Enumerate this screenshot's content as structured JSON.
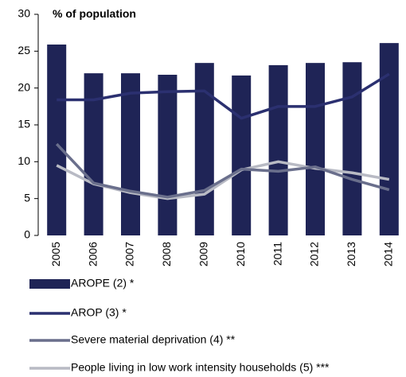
{
  "chart_data": {
    "type": "bar",
    "y_label": "% of population",
    "categories": [
      "2005",
      "2006",
      "2007",
      "2008",
      "2009",
      "2010",
      "2011",
      "2012",
      "2013",
      "2014"
    ],
    "ylim": [
      0,
      30
    ],
    "yticks": [
      0,
      5,
      10,
      15,
      20,
      25,
      30
    ],
    "series": [
      {
        "name": "AROPE (2) *",
        "type": "bar",
        "color": "#1f2456",
        "values": [
          25.9,
          22.0,
          22.0,
          21.8,
          23.4,
          21.7,
          23.1,
          23.4,
          23.5,
          26.1
        ]
      },
      {
        "name": "AROP (3) *",
        "type": "line",
        "color": "#2b3070",
        "values": [
          18.4,
          18.4,
          19.3,
          19.5,
          19.6,
          15.9,
          17.5,
          17.5,
          18.8,
          21.9
        ]
      },
      {
        "name": "Severe material deprivation (4) **",
        "type": "line",
        "color": "#6a6f8c",
        "values": [
          12.4,
          7.1,
          6.0,
          5.2,
          6.1,
          9.0,
          8.7,
          9.3,
          7.6,
          6.2
        ]
      },
      {
        "name": "People living in low work intensity households (5) ***",
        "type": "line",
        "color": "#b8bac4",
        "values": [
          9.5,
          7.0,
          5.8,
          5.0,
          5.6,
          8.9,
          10.0,
          9.1,
          8.5,
          7.6
        ]
      }
    ]
  }
}
